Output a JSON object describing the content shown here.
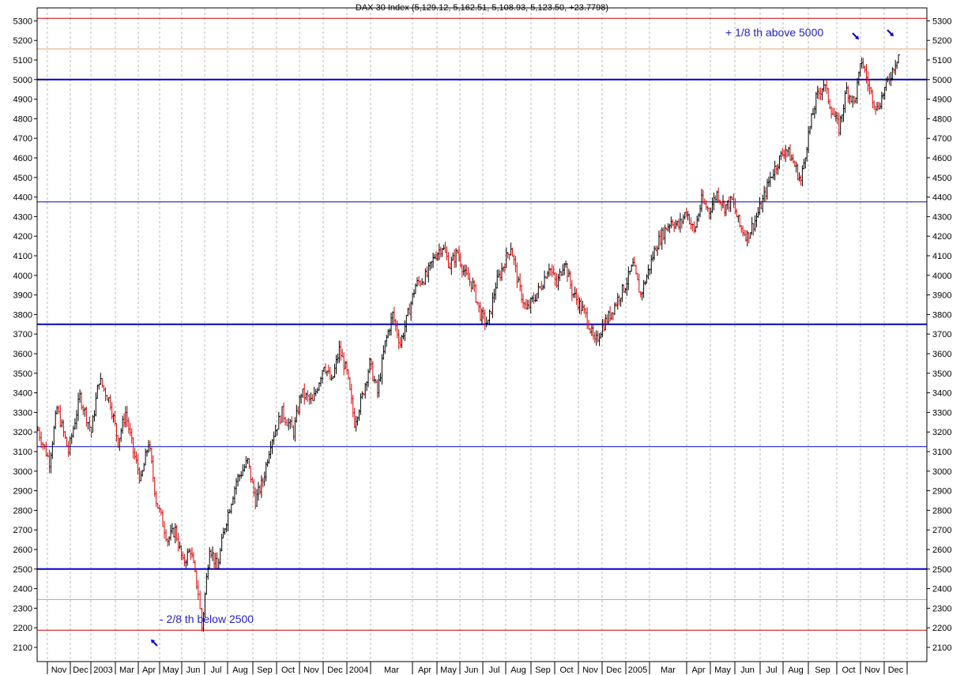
{
  "chart_data": {
    "type": "ohlc",
    "title": "DAX 30 Index (5,129.12, 5,162.51, 5,108.93, 5,123.50, +23.7798)",
    "y_axis": {
      "min": 2050,
      "max": 5350,
      "ticks": [
        2100,
        2200,
        2300,
        2400,
        2500,
        2600,
        2700,
        2800,
        2900,
        3000,
        3100,
        3200,
        3300,
        3400,
        3500,
        3600,
        3700,
        3800,
        3900,
        4000,
        4100,
        4200,
        4300,
        4400,
        4500,
        4600,
        4700,
        4800,
        4900,
        5000,
        5100,
        5200,
        5300
      ]
    },
    "x_axis": {
      "months": [
        "Nov",
        "Dec",
        "2003",
        "Mar",
        "Apr",
        "May",
        "Jun",
        "Jul",
        "Aug",
        "Sep",
        "Oct",
        "Nov",
        "Dec",
        "2004",
        "Mar",
        "Apr",
        "May",
        "Jun",
        "Jul",
        "Aug",
        "Sep",
        "Oct",
        "Nov",
        "Dec",
        "2005",
        "Mar",
        "Apr",
        "May",
        "Jun",
        "Jul",
        "Aug",
        "Sep",
        "Oct",
        "Nov",
        "Dec"
      ]
    },
    "horizontal_lines": [
      {
        "value": 5312.5,
        "color": "#cc0000",
        "weight": 1
      },
      {
        "value": 5156.25,
        "color": "#f0a060",
        "weight": 1
      },
      {
        "value": 5000,
        "color": "#0000cc",
        "weight": 2
      },
      {
        "value": 4375,
        "color": "#0000cc",
        "weight": 1
      },
      {
        "value": 3750,
        "color": "#0000cc",
        "weight": 2
      },
      {
        "value": 3125,
        "color": "#0000cc",
        "weight": 1
      },
      {
        "value": 2500,
        "color": "#0000cc",
        "weight": 2
      },
      {
        "value": 2343.75,
        "color": "#f0a060",
        "weight": 1
      },
      {
        "value": 2187.5,
        "color": "#cc0000",
        "weight": 1
      }
    ],
    "annotations": [
      {
        "text": "+ 1/8 th above 5000"
      },
      {
        "text": "- 2/8 th below 2500"
      }
    ],
    "price_path": [
      [
        0,
        3210
      ],
      [
        3,
        3050
      ],
      [
        5,
        3320
      ],
      [
        8,
        3100
      ],
      [
        11,
        3380
      ],
      [
        14,
        3200
      ],
      [
        16,
        3470
      ],
      [
        19,
        3350
      ],
      [
        21,
        3150
      ],
      [
        23,
        3300
      ],
      [
        25,
        3100
      ],
      [
        27,
        2950
      ],
      [
        29,
        3150
      ],
      [
        31,
        2850
      ],
      [
        34,
        2650
      ],
      [
        36,
        2700
      ],
      [
        38,
        2530
      ],
      [
        40,
        2600
      ],
      [
        42,
        2380
      ],
      [
        43,
        2200
      ],
      [
        45,
        2620
      ],
      [
        47,
        2500
      ],
      [
        49,
        2720
      ],
      [
        52,
        2950
      ],
      [
        55,
        3050
      ],
      [
        57,
        2850
      ],
      [
        59,
        2950
      ],
      [
        61,
        3150
      ],
      [
        64,
        3300
      ],
      [
        67,
        3200
      ],
      [
        69,
        3400
      ],
      [
        72,
        3350
      ],
      [
        75,
        3550
      ],
      [
        77,
        3450
      ],
      [
        79,
        3620
      ],
      [
        81,
        3500
      ],
      [
        83,
        3250
      ],
      [
        85,
        3380
      ],
      [
        87,
        3550
      ],
      [
        89,
        3400
      ],
      [
        91,
        3650
      ],
      [
        93,
        3800
      ],
      [
        95,
        3650
      ],
      [
        97,
        3800
      ],
      [
        99,
        3950
      ],
      [
        102,
        4000
      ],
      [
        104,
        4100
      ],
      [
        106,
        4150
      ],
      [
        108,
        4050
      ],
      [
        110,
        4120
      ],
      [
        112,
        4000
      ],
      [
        114,
        3950
      ],
      [
        116,
        3800
      ],
      [
        118,
        3750
      ],
      [
        120,
        3950
      ],
      [
        122,
        4050
      ],
      [
        124,
        4150
      ],
      [
        126,
        3950
      ],
      [
        128,
        3820
      ],
      [
        130,
        3880
      ],
      [
        132,
        3950
      ],
      [
        134,
        4050
      ],
      [
        136,
        3950
      ],
      [
        138,
        4080
      ],
      [
        140,
        3920
      ],
      [
        142,
        3850
      ],
      [
        144,
        3780
      ],
      [
        146,
        3650
      ],
      [
        148,
        3740
      ],
      [
        150,
        3800
      ],
      [
        152,
        3880
      ],
      [
        154,
        3950
      ],
      [
        156,
        4050
      ],
      [
        158,
        3900
      ],
      [
        160,
        4020
      ],
      [
        162,
        4150
      ],
      [
        164,
        4220
      ],
      [
        166,
        4280
      ],
      [
        168,
        4250
      ],
      [
        170,
        4330
      ],
      [
        172,
        4220
      ],
      [
        174,
        4380
      ],
      [
        176,
        4330
      ],
      [
        178,
        4420
      ],
      [
        180,
        4350
      ],
      [
        182,
        4380
      ],
      [
        184,
        4250
      ],
      [
        186,
        4200
      ],
      [
        188,
        4280
      ],
      [
        190,
        4380
      ],
      [
        192,
        4500
      ],
      [
        194,
        4580
      ],
      [
        196,
        4650
      ],
      [
        198,
        4580
      ],
      [
        200,
        4480
      ],
      [
        202,
        4720
      ],
      [
        204,
        4900
      ],
      [
        206,
        4980
      ],
      [
        208,
        4850
      ],
      [
        210,
        4750
      ],
      [
        212,
        4950
      ],
      [
        214,
        4880
      ],
      [
        216,
        5100
      ],
      [
        218,
        4950
      ],
      [
        220,
        4850
      ],
      [
        222,
        4950
      ],
      [
        224,
        5050
      ],
      [
        226,
        5150
      ]
    ]
  }
}
